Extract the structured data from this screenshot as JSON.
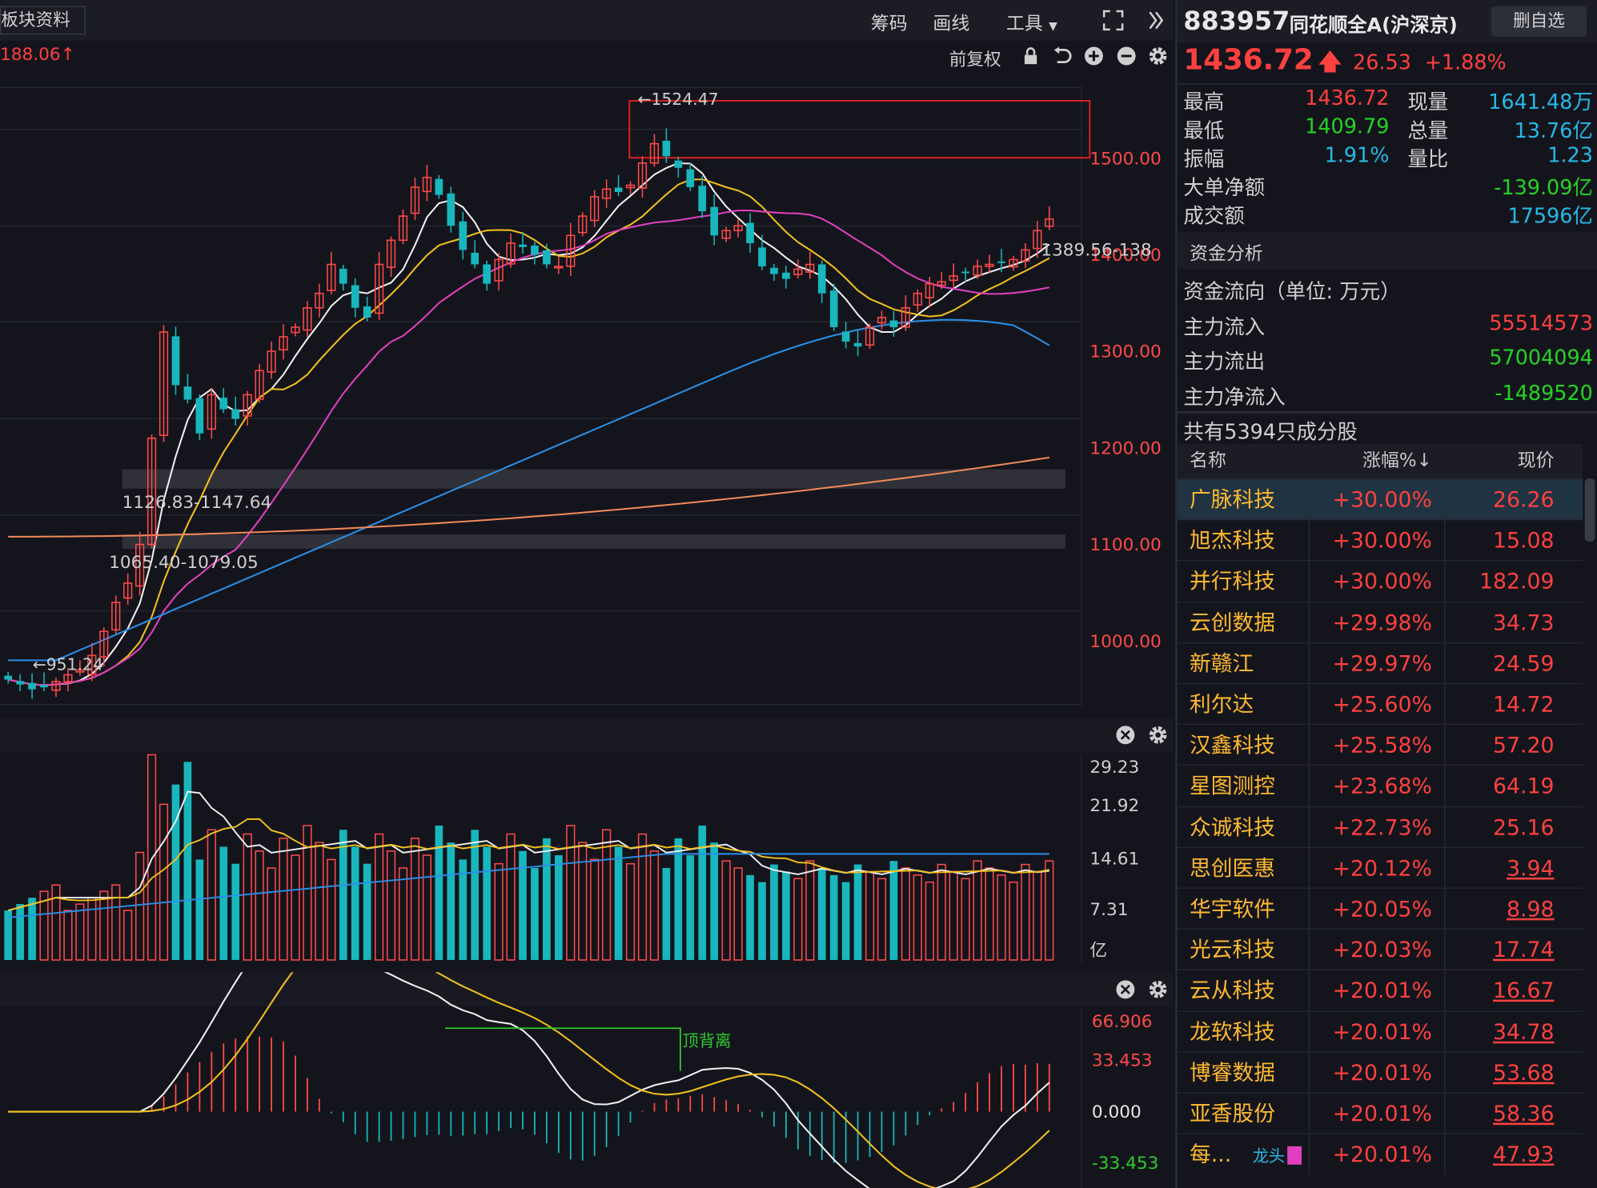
{
  "toolbar": {
    "sector_info": "板块资料",
    "chips": "筹码",
    "draw": "画线",
    "tools": "工具",
    "adjust": "前复权",
    "prev_label": "188.06"
  },
  "header": {
    "code": "883957",
    "name": "同花顺全A(沪深京)",
    "remove_btn": "删自选",
    "price": "1436.72",
    "change": "26.53",
    "change_pct": "+1.88%"
  },
  "stats": {
    "high_label": "最高",
    "high": "1436.72",
    "vol_label": "现量",
    "vol": "1641.48万",
    "low_label": "最低",
    "low": "1409.79",
    "total_label": "总量",
    "total": "13.76亿",
    "amp_label": "振幅",
    "amp": "1.91%",
    "ratio_label": "量比",
    "ratio": "1.23",
    "bignet_label": "大单净额",
    "bignet": "-139.09亿",
    "turnover_label": "成交额",
    "turnover": "17596亿"
  },
  "fund": {
    "title": "资金分析",
    "subtitle": "资金流向（单位: 万元）",
    "in_label": "主力流入",
    "in": "55514573",
    "out_label": "主力流出",
    "out": "57004094",
    "net_label": "主力净流入",
    "net": "-1489520"
  },
  "constituents": {
    "title": "共有5394只成分股",
    "col_name": "名称",
    "col_pct": "涨幅%↓",
    "col_price": "现价",
    "rows": [
      {
        "name": "广脉科技",
        "pct": "+30.00%",
        "price": "26.26"
      },
      {
        "name": "旭杰科技",
        "pct": "+30.00%",
        "price": "15.08"
      },
      {
        "name": "并行科技",
        "pct": "+30.00%",
        "price": "182.09"
      },
      {
        "name": "云创数据",
        "pct": "+29.98%",
        "price": "34.73"
      },
      {
        "name": "新赣江",
        "pct": "+29.97%",
        "price": "24.59"
      },
      {
        "name": "利尔达",
        "pct": "+25.60%",
        "price": "14.72"
      },
      {
        "name": "汉鑫科技",
        "pct": "+25.58%",
        "price": "57.20"
      },
      {
        "name": "星图测控",
        "pct": "+23.68%",
        "price": "64.19"
      },
      {
        "name": "众诚科技",
        "pct": "+22.73%",
        "price": "25.16"
      },
      {
        "name": "思创医惠",
        "pct": "+20.12%",
        "price": "3.94"
      },
      {
        "name": "华宇软件",
        "pct": "+20.05%",
        "price": "8.98"
      },
      {
        "name": "光云科技",
        "pct": "+20.03%",
        "price": "17.74"
      },
      {
        "name": "云从科技",
        "pct": "+20.01%",
        "price": "16.67"
      },
      {
        "name": "龙软科技",
        "pct": "+20.01%",
        "price": "34.78"
      },
      {
        "name": "博睿数据",
        "pct": "+20.01%",
        "price": "53.68"
      },
      {
        "name": "亚香股份",
        "pct": "+20.01%",
        "price": "58.36"
      },
      {
        "name": "每...",
        "pct": "+20.01%",
        "price": "47.93",
        "tag": "龙头"
      }
    ]
  },
  "chart_data": [
    {
      "type": "candlestick",
      "y_ticks": [
        "1500.00",
        "1400.00",
        "1300.00",
        "1200.00",
        "1100.00",
        "1000.00"
      ],
      "ylim": [
        890,
        1590
      ],
      "annotations": [
        "←1524.47",
        "←951.24",
        "1126.83-1147.64",
        "1065.40-1079.05",
        "1389.56-138"
      ],
      "closes": [
        960,
        955,
        950,
        952,
        958,
        965,
        970,
        985,
        1010,
        1040,
        1060,
        1100,
        1210,
        1320,
        1265,
        1250,
        1215,
        1255,
        1240,
        1230,
        1255,
        1280,
        1300,
        1315,
        1325,
        1345,
        1360,
        1390,
        1370,
        1345,
        1335,
        1390,
        1415,
        1440,
        1470,
        1480,
        1462,
        1430,
        1405,
        1390,
        1370,
        1395,
        1412,
        1408,
        1400,
        1390,
        1388,
        1420,
        1440,
        1460,
        1468,
        1465,
        1472,
        1495,
        1515,
        1502,
        1490,
        1470,
        1445,
        1420,
        1425,
        1430,
        1412,
        1388,
        1380,
        1375,
        1385,
        1390,
        1360,
        1325,
        1310,
        1305,
        1325,
        1335,
        1325,
        1345,
        1360,
        1370,
        1372,
        1378,
        1382,
        1388,
        1390,
        1392,
        1395,
        1405,
        1425,
        1437
      ]
    },
    {
      "type": "bar",
      "y_ticks": [
        "29.23",
        "21.92",
        "14.61",
        "7.31",
        "亿"
      ]
    },
    {
      "type": "bar",
      "y_ticks": [
        "66.906",
        "33.453",
        "0.000",
        "-33.453"
      ],
      "annotations": [
        "顶背离"
      ]
    }
  ]
}
